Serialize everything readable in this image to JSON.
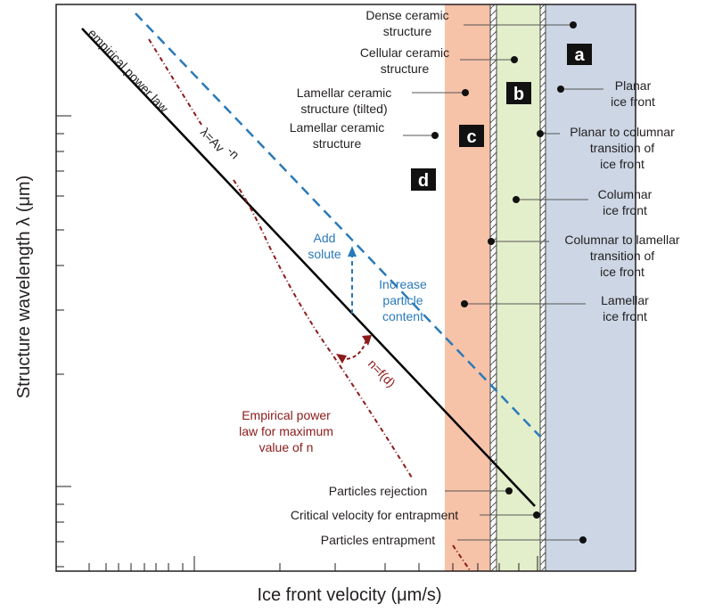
{
  "axes": {
    "x_label": "Ice front velocity (μm/s)",
    "y_label": "Structure wavelength λ (μm)"
  },
  "lines": {
    "empirical_power_law": "empirical power law",
    "power_law_formula": "λ=Av",
    "power_law_exponent": "-n",
    "exponent_function": "n=f(d)",
    "max_n_label": [
      "Empirical power",
      "law for maximum",
      "value of n"
    ]
  },
  "annotations": {
    "add_solute": [
      "Add",
      "solute"
    ],
    "increase_particle_content": [
      "Increase",
      "particle",
      "content"
    ]
  },
  "regions": {
    "a": "a",
    "b": "b",
    "c": "c",
    "d": "d"
  },
  "structure_labels": {
    "dense": [
      "Dense ceramic",
      "structure"
    ],
    "cellular": [
      "Cellular ceramic",
      "structure"
    ],
    "lamellar_tilted": [
      "Lamellar ceramic",
      "structure (tilted)"
    ],
    "lamellar": [
      "Lamellar ceramic",
      "structure"
    ]
  },
  "front_labels": {
    "planar": [
      "Planar",
      "ice front"
    ],
    "planar_to_columnar": [
      "Planar to columnar",
      "transition of",
      "ice front"
    ],
    "columnar": [
      "Columnar",
      "ice front"
    ],
    "columnar_to_lamellar": [
      "Columnar to lamellar",
      "transition of",
      "ice front"
    ],
    "lamellar": [
      "Lamellar",
      "ice front"
    ]
  },
  "particle_labels": {
    "rejection": "Particles rejection",
    "critical_velocity": "Critical velocity for entrapment",
    "entrapment": "Particles entrapment"
  },
  "colors": {
    "region_d_band": "#f6c2a8",
    "region_b_band": "#e3eecb",
    "region_a_band": "#ccd6e4",
    "power_law_line": "#000000",
    "particle_content_line": "#2a7ab9",
    "max_n_line": "#8b1a1a"
  }
}
